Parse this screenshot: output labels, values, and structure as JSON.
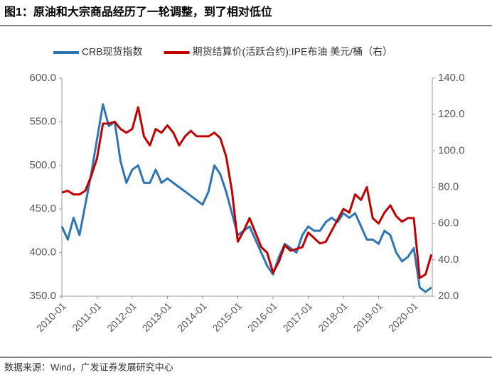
{
  "chart_data": {
    "type": "line",
    "title": "图1：原油和大宗商品经历了一轮调整，到了相对低位",
    "source": "数据来源：Wind，广发证券发展研究中心",
    "x": [
      "2010-01",
      "2010-03",
      "2010-05",
      "2010-07",
      "2010-09",
      "2010-11",
      "2011-01",
      "2011-03",
      "2011-05",
      "2011-07",
      "2011-09",
      "2011-11",
      "2012-01",
      "2012-03",
      "2012-05",
      "2012-07",
      "2012-09",
      "2012-11",
      "2013-01",
      "2013-03",
      "2013-05",
      "2013-07",
      "2013-09",
      "2013-11",
      "2014-01",
      "2014-03",
      "2014-05",
      "2014-07",
      "2014-09",
      "2014-11",
      "2015-01",
      "2015-03",
      "2015-05",
      "2015-07",
      "2015-09",
      "2015-11",
      "2016-01",
      "2016-03",
      "2016-05",
      "2016-07",
      "2016-09",
      "2016-11",
      "2017-01",
      "2017-03",
      "2017-05",
      "2017-07",
      "2017-09",
      "2017-11",
      "2018-01",
      "2018-03",
      "2018-05",
      "2018-07",
      "2018-09",
      "2018-11",
      "2019-01",
      "2019-03",
      "2019-05",
      "2019-07",
      "2019-09",
      "2019-11",
      "2020-01",
      "2020-03",
      "2020-05",
      "2020-07"
    ],
    "series": [
      {
        "name": "CRB现货指数",
        "color": "#2e75b6",
        "axis": "y",
        "values": [
          430,
          415,
          440,
          420,
          455,
          490,
          530,
          570,
          545,
          550,
          505,
          480,
          495,
          500,
          480,
          480,
          495,
          480,
          485,
          480,
          475,
          470,
          465,
          460,
          455,
          470,
          500,
          490,
          470,
          445,
          420,
          425,
          430,
          415,
          400,
          385,
          375,
          395,
          410,
          405,
          400,
          420,
          430,
          425,
          425,
          435,
          440,
          435,
          445,
          440,
          445,
          430,
          415,
          415,
          410,
          425,
          420,
          400,
          390,
          395,
          405,
          360,
          355,
          360
        ]
      },
      {
        "name": "期货结算价(活跃合约):IPE布油 美元/桶（右）",
        "color": "#c00000",
        "axis": "y2",
        "values": [
          77,
          78,
          76,
          76,
          78,
          86,
          96,
          115,
          115,
          116,
          112,
          110,
          112,
          124,
          108,
          103,
          112,
          110,
          114,
          110,
          103,
          108,
          111,
          108,
          108,
          108,
          110,
          107,
          97,
          78,
          50,
          56,
          63,
          55,
          47,
          44,
          33,
          39,
          48,
          45,
          46,
          47,
          55,
          52,
          49,
          50,
          56,
          62,
          68,
          66,
          76,
          73,
          80,
          63,
          60,
          66,
          70,
          64,
          61,
          63,
          63,
          30,
          32,
          43
        ]
      }
    ],
    "xticks": [
      "2010-01",
      "2011-01",
      "2012-01",
      "2013-01",
      "2014-01",
      "2015-01",
      "2016-01",
      "2017-01",
      "2018-01",
      "2019-01",
      "2020-01"
    ],
    "ylim": [
      350,
      600
    ],
    "yticks": [
      {
        "value": 350,
        "label": "350.0"
      },
      {
        "value": 400,
        "label": "400.0"
      },
      {
        "value": 450,
        "label": "450.0"
      },
      {
        "value": 500,
        "label": "500.0"
      },
      {
        "value": 550,
        "label": "550.0"
      },
      {
        "value": 600,
        "label": "600.0"
      }
    ],
    "y2lim": [
      20,
      140
    ],
    "y2ticks": [
      {
        "value": 20,
        "label": "20.0"
      },
      {
        "value": 40,
        "label": "40.0"
      },
      {
        "value": 60,
        "label": "60.0"
      },
      {
        "value": 80,
        "label": "80.0"
      },
      {
        "value": 100,
        "label": "100.0"
      },
      {
        "value": 120,
        "label": "120.0"
      },
      {
        "value": 140,
        "label": "140.0"
      }
    ],
    "legend": "top"
  }
}
